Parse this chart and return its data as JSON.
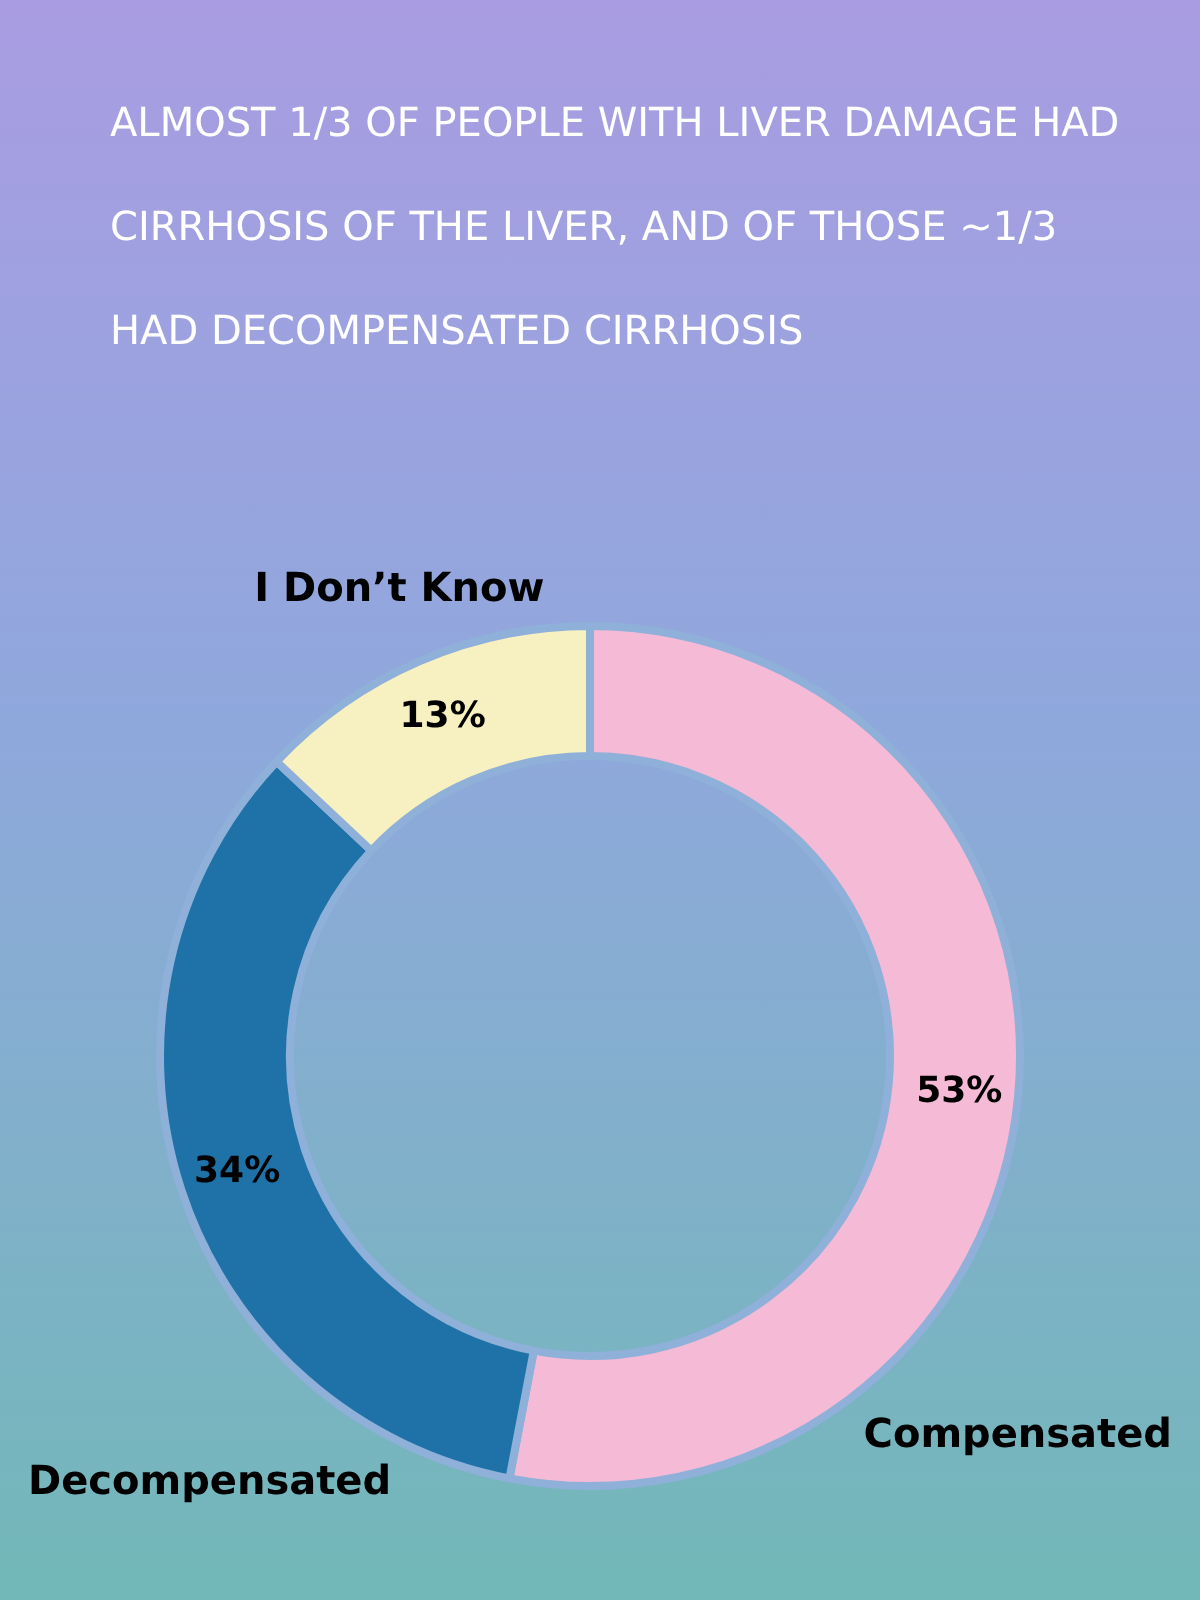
{
  "chart_data": {
    "type": "donut",
    "title": "ALMOST 1/3 OF PEOPLE WITH LIVER DAMAGE HAD CIRRHOSIS OF THE LIVER, AND OF THOSE ~1/3 HAD DECOMPENSATED CIRRHOSIS",
    "categories": [
      "Compensated",
      "Decompensated",
      "I Don’t Know"
    ],
    "values": [
      53,
      34,
      13
    ],
    "value_labels": [
      "53%",
      "34%",
      "13%"
    ],
    "colors": [
      "#f4bad6",
      "#1e72a8",
      "#f7f0c0"
    ],
    "legend": false
  }
}
